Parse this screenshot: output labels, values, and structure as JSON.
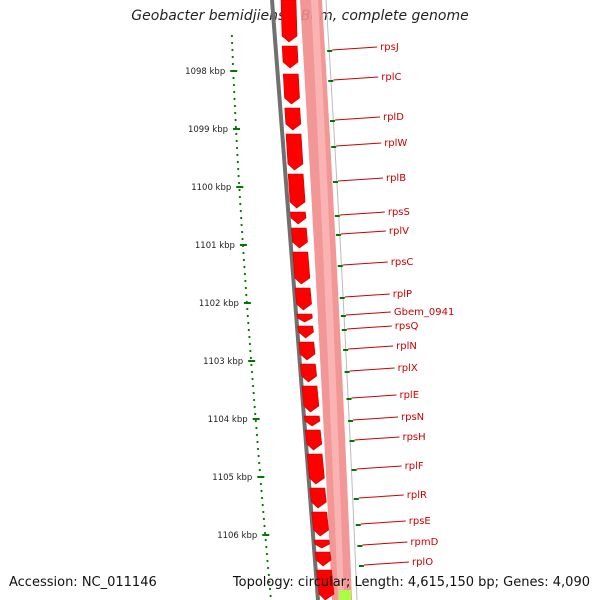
{
  "title": "Geobacter bemidjiensis Bem, complete genome",
  "footer": {
    "accession": "Accession: NC_011146",
    "summary": "Topology: circular; Length: 4,615,150 bp; Genes: 4,090"
  },
  "colors": {
    "gene": "#ff0000",
    "gene_track": "#f28b8b",
    "backbone": "#707070",
    "tick": "#007700",
    "label": "#cc0000",
    "highlight": "#aaff44"
  },
  "scale_labels": [
    "1098 kbp",
    "1099 kbp",
    "1100 kbp",
    "1101 kbp",
    "1102 kbp",
    "1103 kbp",
    "1104 kbp",
    "1105 kbp",
    "1106 kbp"
  ],
  "genes": [
    "rpsJ",
    "rplC",
    "rplD",
    "rplW",
    "rplB",
    "rpsS",
    "rplV",
    "rpsC",
    "rplP",
    "Gbem_0941",
    "rpsQ",
    "rplN",
    "rplX",
    "rplE",
    "rpsN",
    "rpsH",
    "rplF",
    "rplR",
    "rpsE",
    "rpmD",
    "rplO"
  ]
}
